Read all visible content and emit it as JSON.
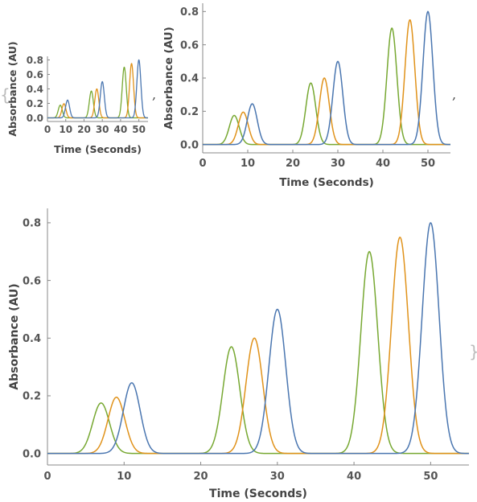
{
  "separators": {
    "comma1": ",",
    "comma2": ",",
    "open_brace": "{",
    "close_brace": "}"
  },
  "series_colors": [
    "#77a832",
    "#e0921a",
    "#4a76b0"
  ],
  "chart_data": [
    {
      "type": "line",
      "title": "",
      "xlabel": "Time  (Seconds)",
      "ylabel": "Absorbance  (AU)",
      "xlim": [
        0,
        55
      ],
      "ylim": [
        -0.05,
        0.85
      ],
      "xticks": [
        0,
        10,
        20,
        30,
        40,
        50
      ],
      "yticks": [
        0.0,
        0.2,
        0.4,
        0.6,
        0.8
      ],
      "ytick_labels": [
        "0.0",
        "0.2",
        "0.4",
        "0.6",
        "0.8"
      ],
      "grid": false,
      "series": [
        {
          "color": "#77a832",
          "peaks": [
            {
              "x": 7,
              "y": 0.175
            },
            {
              "x": 24,
              "y": 0.37
            },
            {
              "x": 42,
              "y": 0.7
            }
          ]
        },
        {
          "color": "#e0921a",
          "peaks": [
            {
              "x": 9,
              "y": 0.195
            },
            {
              "x": 27,
              "y": 0.4
            },
            {
              "x": 46,
              "y": 0.75
            }
          ]
        },
        {
          "color": "#4a76b0",
          "peaks": [
            {
              "x": 11,
              "y": 0.245
            },
            {
              "x": 30,
              "y": 0.5
            },
            {
              "x": 50,
              "y": 0.8
            }
          ]
        }
      ]
    },
    {
      "type": "line",
      "title": "",
      "xlabel": "Time  (Seconds)",
      "ylabel": "Absorbance  (AU)",
      "xlim": [
        0,
        55
      ],
      "ylim": [
        -0.05,
        0.85
      ],
      "xticks": [
        0,
        10,
        20,
        30,
        40,
        50
      ],
      "yticks": [
        0.0,
        0.2,
        0.4,
        0.6,
        0.8
      ],
      "ytick_labels": [
        "0.0",
        "0.2",
        "0.4",
        "0.6",
        "0.8"
      ],
      "grid": false,
      "series": [
        {
          "color": "#77a832",
          "peaks": [
            {
              "x": 7,
              "y": 0.175
            },
            {
              "x": 24,
              "y": 0.37
            },
            {
              "x": 42,
              "y": 0.7
            }
          ]
        },
        {
          "color": "#e0921a",
          "peaks": [
            {
              "x": 9,
              "y": 0.195
            },
            {
              "x": 27,
              "y": 0.4
            },
            {
              "x": 46,
              "y": 0.75
            }
          ]
        },
        {
          "color": "#4a76b0",
          "peaks": [
            {
              "x": 11,
              "y": 0.245
            },
            {
              "x": 30,
              "y": 0.5
            },
            {
              "x": 50,
              "y": 0.8
            }
          ]
        }
      ]
    },
    {
      "type": "line",
      "title": "",
      "xlabel": "Time  (Seconds)",
      "ylabel": "Absorbance  (AU)",
      "xlim": [
        0,
        55
      ],
      "ylim": [
        -0.04,
        0.85
      ],
      "xticks": [
        0,
        10,
        20,
        30,
        40,
        50
      ],
      "yticks": [
        0.0,
        0.2,
        0.4,
        0.6,
        0.8
      ],
      "ytick_labels": [
        "0.0",
        "0.2",
        "0.4",
        "0.6",
        "0.8"
      ],
      "grid": false,
      "series": [
        {
          "color": "#77a832",
          "peaks": [
            {
              "x": 7,
              "y": 0.175
            },
            {
              "x": 24,
              "y": 0.37
            },
            {
              "x": 42,
              "y": 0.7
            }
          ]
        },
        {
          "color": "#e0921a",
          "peaks": [
            {
              "x": 9,
              "y": 0.195
            },
            {
              "x": 27,
              "y": 0.4
            },
            {
              "x": 46,
              "y": 0.75
            }
          ]
        },
        {
          "color": "#4a76b0",
          "peaks": [
            {
              "x": 11,
              "y": 0.245
            },
            {
              "x": 30,
              "y": 0.5
            },
            {
              "x": 50,
              "y": 0.8
            }
          ]
        }
      ]
    }
  ]
}
